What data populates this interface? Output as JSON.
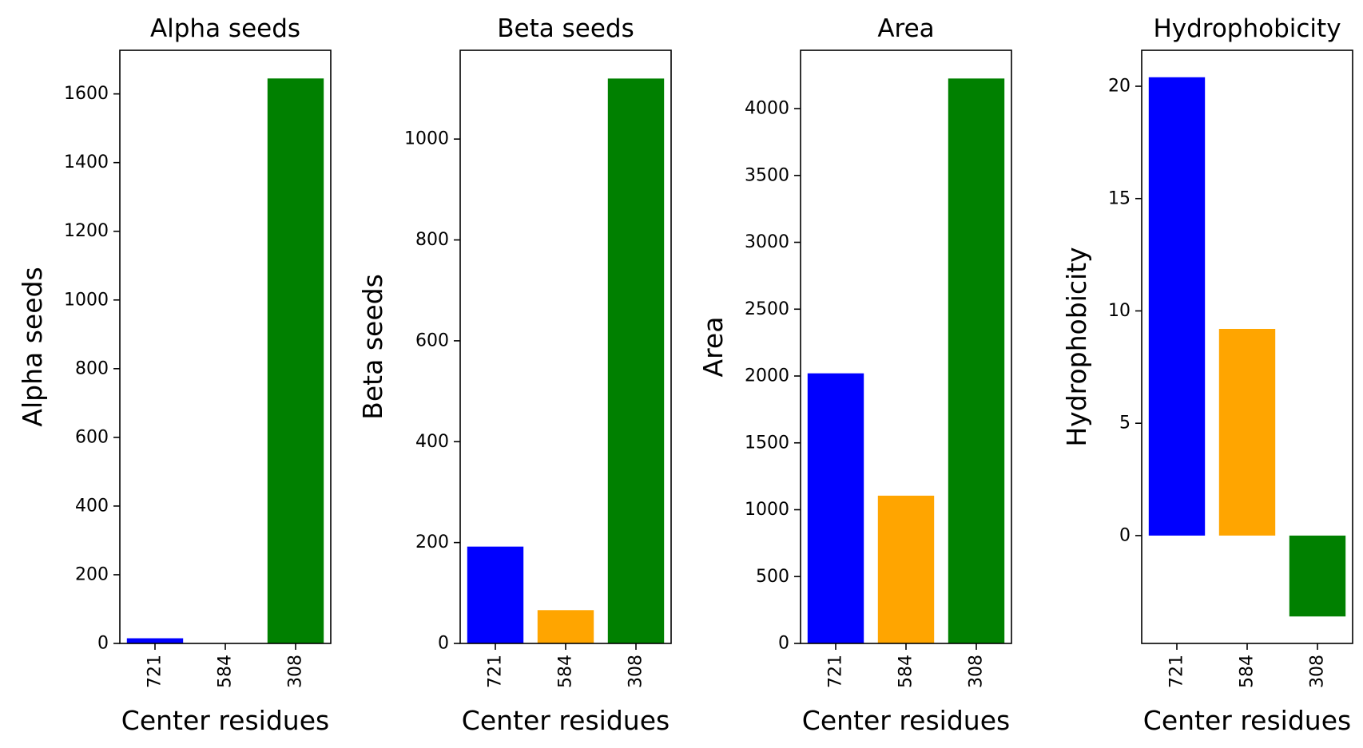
{
  "chart_data": [
    {
      "type": "bar",
      "title": "Alpha seeds",
      "xlabel": "Center residues",
      "ylabel": "Alpha seeds",
      "categories": [
        "721",
        "584",
        "308"
      ],
      "values": [
        15,
        0,
        1645
      ],
      "colors": [
        "#0000ff",
        "#ffa500",
        "#008000"
      ],
      "ylim": [
        0,
        1727
      ],
      "yticks": [
        0,
        200,
        400,
        600,
        800,
        1000,
        1200,
        1400,
        1600
      ],
      "grid": false
    },
    {
      "type": "bar",
      "title": "Beta seeds",
      "xlabel": "Center residues",
      "ylabel": "Beta seeds",
      "categories": [
        "721",
        "584",
        "308"
      ],
      "values": [
        192,
        66,
        1120
      ],
      "colors": [
        "#0000ff",
        "#ffa500",
        "#008000"
      ],
      "ylim": [
        0,
        1176
      ],
      "yticks": [
        0,
        200,
        400,
        600,
        800,
        1000
      ],
      "grid": false
    },
    {
      "type": "bar",
      "title": "Area",
      "xlabel": "Center residues",
      "ylabel": "Area",
      "categories": [
        "721",
        "584",
        "308"
      ],
      "values": [
        2020,
        1105,
        4225
      ],
      "colors": [
        "#0000ff",
        "#ffa500",
        "#008000"
      ],
      "ylim": [
        0,
        4436
      ],
      "yticks": [
        0,
        500,
        1000,
        1500,
        2000,
        2500,
        3000,
        3500,
        4000
      ],
      "grid": false
    },
    {
      "type": "bar",
      "title": "Hydrophobicity",
      "xlabel": "Center residues",
      "ylabel": "Hydrophobicity",
      "categories": [
        "721",
        "584",
        "308"
      ],
      "values": [
        20.4,
        9.2,
        -3.6
      ],
      "colors": [
        "#0000ff",
        "#ffa500",
        "#008000"
      ],
      "ylim": [
        -4.8,
        21.6
      ],
      "yticks": [
        0,
        5,
        10,
        15,
        20
      ],
      "grid": false
    }
  ]
}
